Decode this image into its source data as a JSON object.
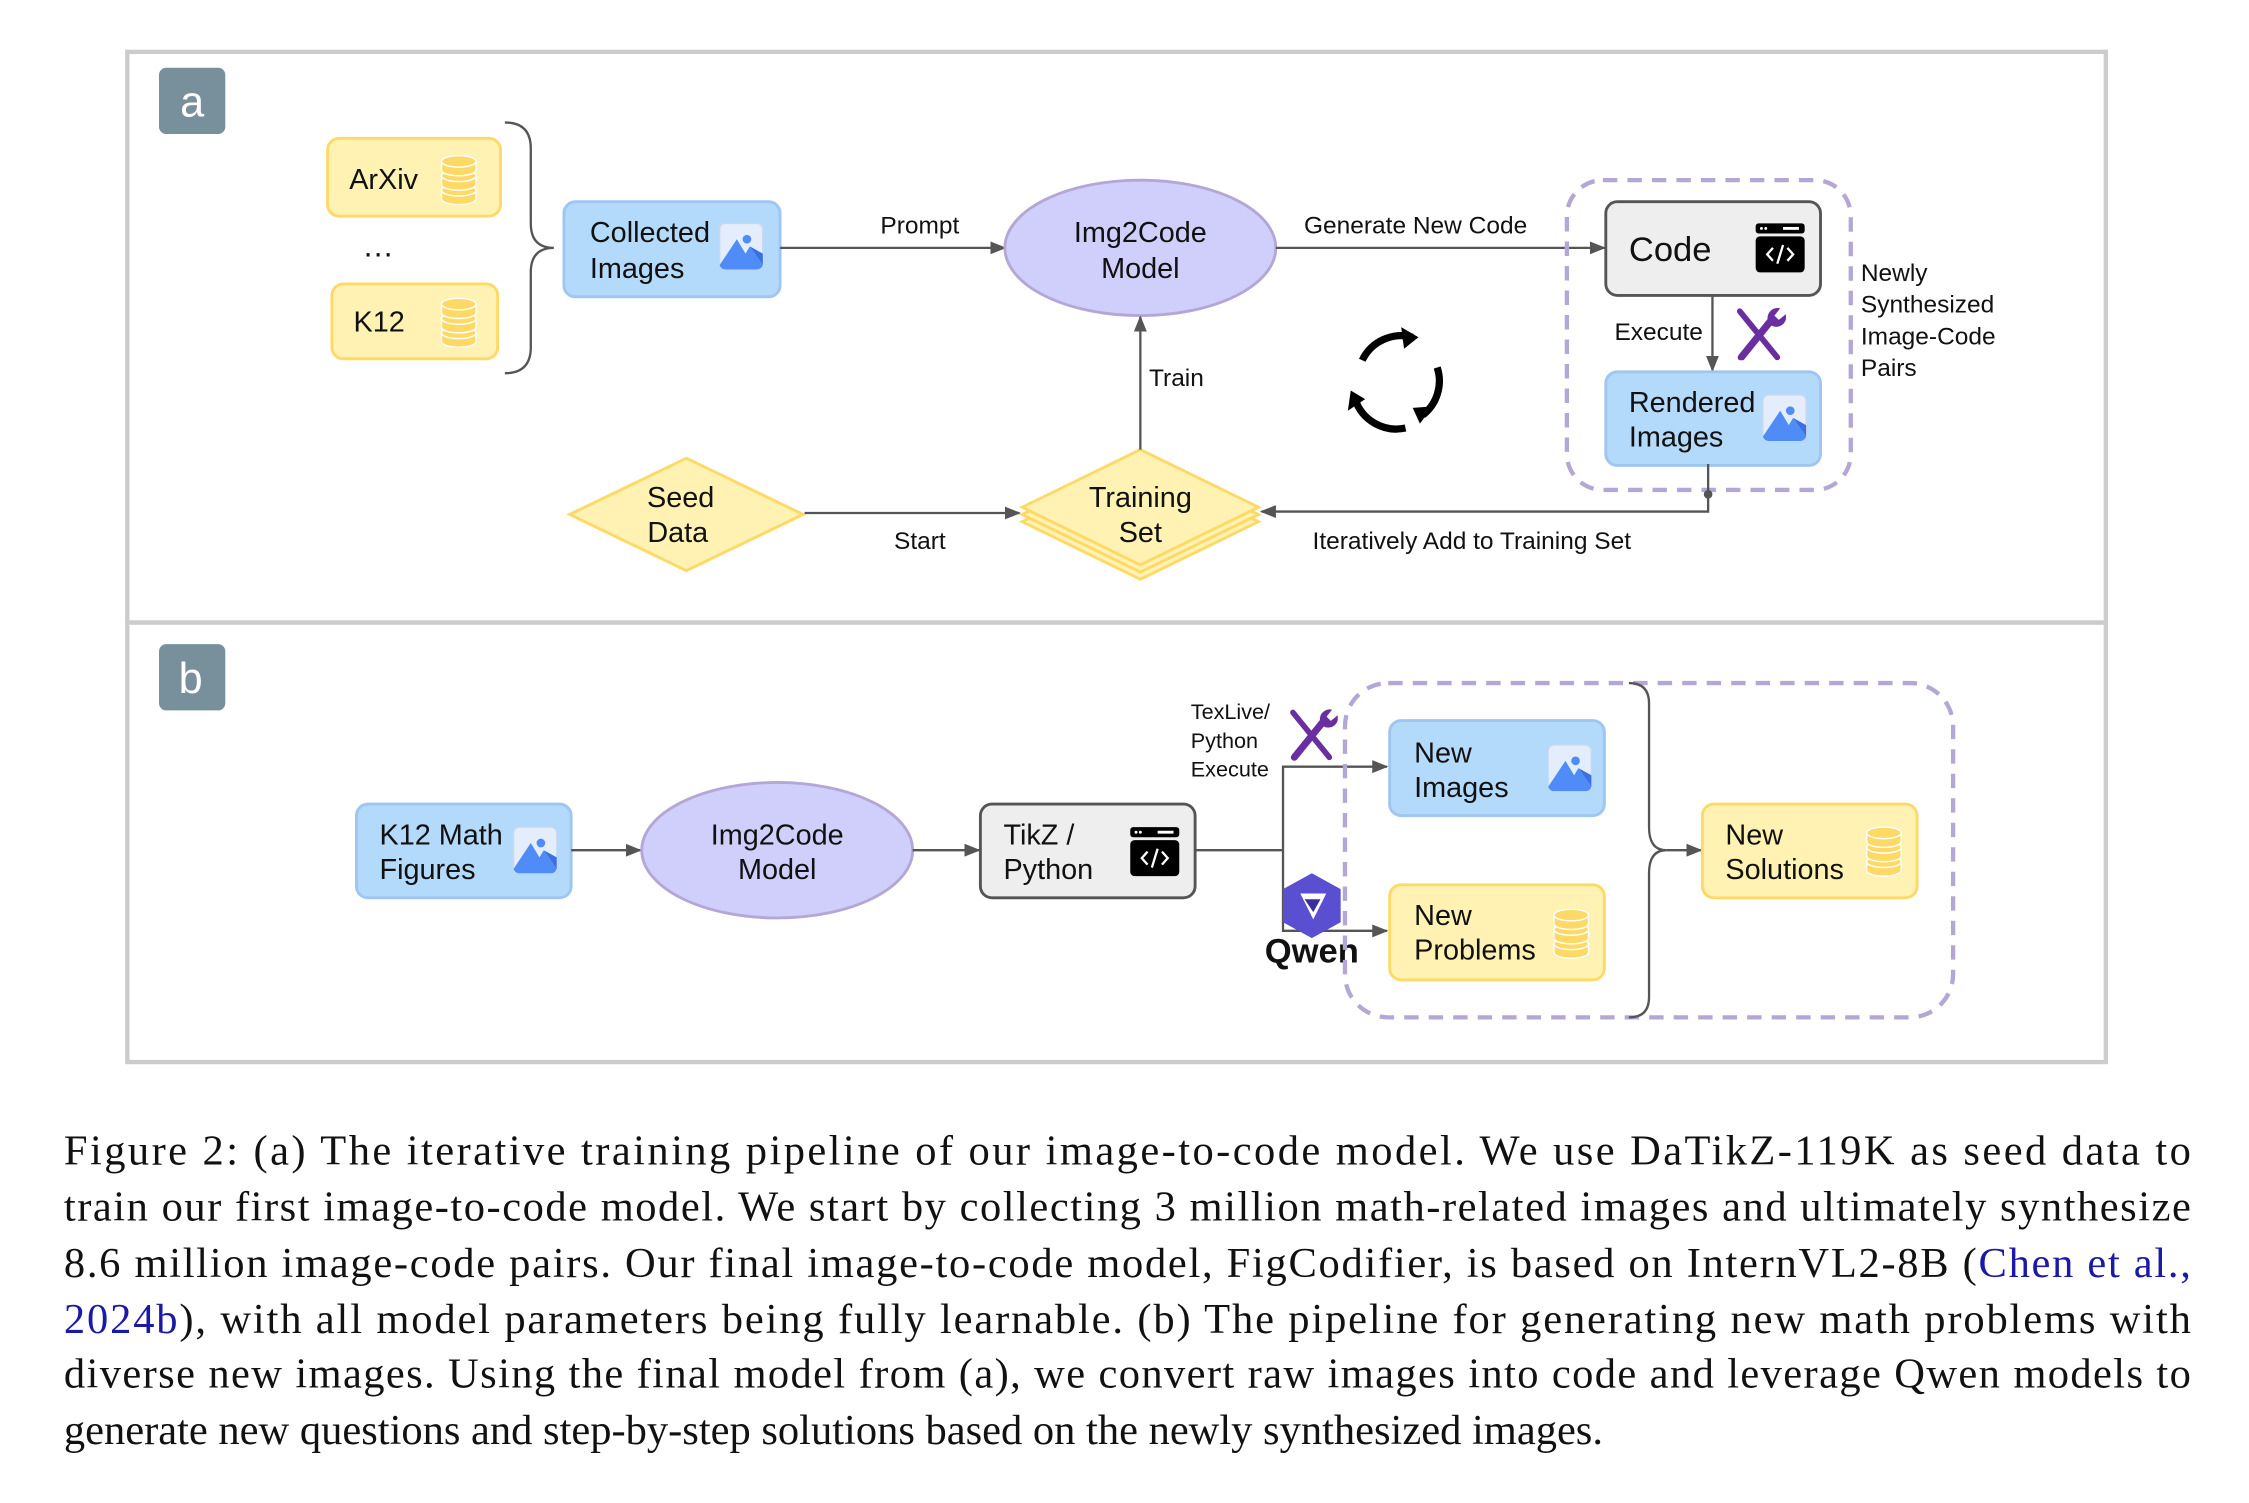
{
  "colors": {
    "yellow_fill": "#fff2b3",
    "yellow_stroke": "#ffd966",
    "blue_fill": "#b3d9fb",
    "blue_stroke": "#9fc5f0",
    "purple_fill": "#d0cefa",
    "purple_stroke": "#b4a7d6",
    "code_fill": "#eeeeee",
    "label_badge": "#78909c",
    "link": "#1a1aa6"
  },
  "panel_a": {
    "label": "a",
    "sources": [
      "ArXiv",
      "…",
      "K12"
    ],
    "collected_images": [
      "Collected",
      "Images"
    ],
    "prompt_label": "Prompt",
    "model": [
      "Img2Code",
      "Model"
    ],
    "generate_label": "Generate New Code",
    "code_label": "Code",
    "execute_label": "Execute",
    "rendered_images": [
      "Rendered",
      "Images"
    ],
    "group_label": [
      "Newly",
      "Synthesized",
      "Image-Code",
      "Pairs"
    ],
    "train_label": "Train",
    "seed_data": [
      "Seed",
      "Data"
    ],
    "start_label": "Start",
    "training_set": [
      "Training",
      "Set"
    ],
    "iterate_label": "Iteratively Add to Training Set",
    "icons": [
      "database-icon",
      "image-icon",
      "code-window-icon",
      "tools-icon",
      "cycle-icon"
    ]
  },
  "panel_b": {
    "label": "b",
    "k12_figures": [
      "K12 Math",
      "Figures"
    ],
    "model": [
      "Img2Code",
      "Model"
    ],
    "code_box": [
      "TikZ /",
      "Python"
    ],
    "execute_label": [
      "TexLive/",
      "Python",
      "Execute"
    ],
    "qwen_label": "Qwen",
    "new_images": [
      "New",
      "Images"
    ],
    "new_problems": [
      "New",
      "Problems"
    ],
    "new_solutions": [
      "New",
      "Solutions"
    ],
    "icons": [
      "qwen-logo-icon",
      "tools-icon",
      "database-icon",
      "image-icon",
      "code-window-icon"
    ]
  },
  "caption": {
    "line1": "Figure 2: (a) The iterative training pipeline of our image-to-code model. We use DaTikZ-119K as seed data to",
    "line2": "train our first image-to-code model. We start by collecting 3 million math-related images and ultimately synthesize",
    "line3": "8.6 million image-code pairs. Our final image-to-code model, FigCodifier, is based on InternVL2-8B (",
    "line3_link": "Chen et al.,",
    "line4_link": "2024b",
    "line4": "), with all model parameters being fully learnable. (b) The pipeline for generating new math problems with",
    "line5": "diverse new images. Using the final model from (a), we convert raw images into code and leverage Qwen models to",
    "line6": "generate new questions and step-by-step solutions based on the newly synthesized images."
  }
}
